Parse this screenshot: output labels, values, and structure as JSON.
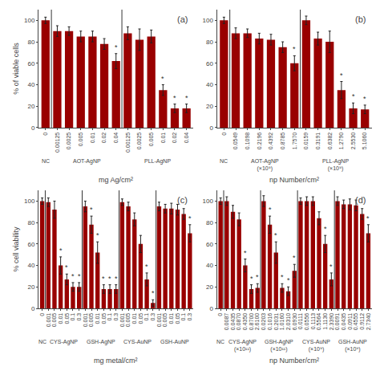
{
  "chart_data": [
    {
      "type": "bar",
      "title": "(a)",
      "xlabel": "mg Ag/cm²",
      "ylabel": "% of viable cells",
      "ylim": [
        0,
        110
      ],
      "yticks": [
        0,
        20,
        40,
        60,
        80,
        100
      ],
      "grid": false,
      "color": "#990000",
      "groups": [
        {
          "name": "NC",
          "categories": [
            "0"
          ],
          "values": [
            100
          ],
          "errors": [
            3
          ],
          "stars": [
            null
          ]
        },
        {
          "name": "AOT-AgNP",
          "categories": [
            "0.00125",
            "0.0025",
            "0.005",
            "0.01",
            "0.02",
            "0.04"
          ],
          "values": [
            90,
            90,
            85,
            85,
            78,
            62
          ],
          "errors": [
            5,
            4,
            5,
            5,
            5,
            7
          ],
          "stars": [
            null,
            null,
            null,
            null,
            null,
            "*"
          ]
        },
        {
          "name": "PLL-AgNP",
          "categories": [
            "0.00125",
            "0.0025",
            "0.005",
            "0.01",
            "0.02",
            "0.04"
          ],
          "values": [
            88,
            82,
            85,
            35,
            18,
            18
          ],
          "errors": [
            6,
            10,
            6,
            5,
            4,
            4
          ],
          "stars": [
            null,
            null,
            null,
            "*",
            "*",
            "*"
          ]
        }
      ]
    },
    {
      "type": "bar",
      "title": "(b)",
      "xlabel": "np Number/cm²",
      "ylim": [
        0,
        110
      ],
      "yticks": [
        0,
        20,
        40,
        60,
        80,
        100
      ],
      "grid": false,
      "color": "#990000",
      "groups": [
        {
          "name": "NC",
          "categories": [
            "0"
          ],
          "values": [
            100
          ],
          "errors": [
            3
          ],
          "stars": [
            null
          ]
        },
        {
          "name": "AOT-AgNP (×10⁹)",
          "categories": [
            "0.0549",
            "0.1098",
            "0.2196",
            "0.4392",
            "0.8785",
            "1.7570"
          ],
          "values": [
            88,
            88,
            83,
            82,
            75,
            60
          ],
          "errors": [
            5,
            4,
            5,
            5,
            5,
            7
          ],
          "stars": [
            null,
            null,
            null,
            null,
            null,
            "*"
          ]
        },
        {
          "name": "PLL-AgNP (×10⁹)",
          "categories": [
            "0.0159",
            "0.3191",
            "0.6382",
            "1.2790",
            "2.5530",
            "5.1060"
          ],
          "values": [
            100,
            83,
            80,
            35,
            18,
            17
          ],
          "errors": [
            4,
            6,
            10,
            8,
            5,
            4
          ],
          "stars": [
            null,
            null,
            null,
            "*",
            "*",
            "*"
          ]
        }
      ]
    },
    {
      "type": "bar",
      "title": "(c)",
      "xlabel": "mg metal/cm²",
      "ylabel": "% cell viability",
      "ylim": [
        0,
        110
      ],
      "yticks": [
        0,
        20,
        40,
        60,
        80,
        100
      ],
      "grid": false,
      "color": "#990000",
      "groups": [
        {
          "name": "NC",
          "categories": [
            "0"
          ],
          "values": [
            100
          ],
          "errors": [
            3
          ],
          "stars": [
            null
          ]
        },
        {
          "name": "CYS-AgNP",
          "categories": [
            "0.001",
            "0.005",
            "0.01",
            "0.05",
            "0.1",
            "0.3"
          ],
          "values": [
            99,
            92,
            40,
            27,
            20,
            20
          ],
          "errors": [
            4,
            8,
            8,
            5,
            4,
            4
          ],
          "stars": [
            null,
            null,
            "*",
            "*",
            "*",
            "*"
          ]
        },
        {
          "name": "GSH-AgNP",
          "categories": [
            "0.001",
            "0.005",
            "0.01",
            "0.05",
            "0.1",
            "0.3"
          ],
          "values": [
            95,
            78,
            52,
            18,
            18,
            18
          ],
          "errors": [
            5,
            8,
            10,
            4,
            4,
            4
          ],
          "stars": [
            null,
            "*",
            "*",
            "*",
            "*",
            "*"
          ]
        },
        {
          "name": "CYS-AuNP",
          "categories": [
            "0.001",
            "0.005",
            "0.01",
            "0.05",
            "0.1",
            "0.3"
          ],
          "values": [
            99,
            95,
            83,
            60,
            27,
            5
          ],
          "errors": [
            3,
            4,
            6,
            8,
            6,
            3
          ],
          "stars": [
            null,
            null,
            null,
            null,
            "*",
            "*"
          ]
        },
        {
          "name": "GSH-AuNP",
          "categories": [
            "0.001",
            "0.005",
            "0.01",
            "0.05",
            "0.1",
            "0.3"
          ],
          "values": [
            95,
            93,
            93,
            92,
            88,
            70
          ],
          "errors": [
            4,
            4,
            5,
            5,
            5,
            8
          ],
          "stars": [
            null,
            null,
            null,
            null,
            null,
            "*"
          ]
        }
      ]
    },
    {
      "type": "bar",
      "title": "(d)",
      "xlabel": "np Number/cm²",
      "ylim": [
        0,
        110
      ],
      "yticks": [
        0,
        20,
        40,
        60,
        80,
        100
      ],
      "grid": false,
      "color": "#990000",
      "groups": [
        {
          "name": "NC",
          "categories": [
            "0"
          ],
          "values": [
            100
          ],
          "errors": [
            3
          ],
          "stars": [
            null
          ]
        },
        {
          "name": "CYS-AgNP (×10¹¹)",
          "categories": [
            "0.0087",
            "0.0435",
            "0.0870",
            "0.4350",
            "0.8700",
            "2.6100"
          ],
          "values": [
            100,
            90,
            83,
            40,
            18,
            19
          ],
          "errors": [
            4,
            6,
            6,
            6,
            4,
            4
          ],
          "stars": [
            null,
            null,
            null,
            "*",
            "*",
            "*"
          ]
        },
        {
          "name": "GSH-AgNP (×10¹¹)",
          "categories": [
            "0.0203",
            "0.1016",
            "0.2031",
            "1.0160",
            "2.0310",
            "6.0930"
          ],
          "values": [
            100,
            78,
            52,
            19,
            16,
            35
          ],
          "errors": [
            5,
            8,
            10,
            4,
            4,
            6
          ],
          "stars": [
            null,
            "*",
            "*",
            "*",
            "*",
            "*"
          ]
        },
        {
          "name": "CYS-AuNP (×10⁹)",
          "categories": [
            "0.0111",
            "0.0556",
            "0.1113",
            "0.5564",
            "1.1130",
            "2.3390"
          ],
          "values": [
            100,
            100,
            100,
            84,
            60,
            27
          ],
          "errors": [
            3,
            4,
            4,
            6,
            8,
            6
          ],
          "stars": [
            null,
            null,
            null,
            null,
            "*",
            "*"
          ]
        },
        {
          "name": "GSH-AuNP (×10⁹)",
          "categories": [
            "0.0091",
            "0.0435",
            "0.0911",
            "0.4555",
            "0.9112",
            "2.7340"
          ],
          "values": [
            100,
            97,
            97,
            96,
            88,
            70
          ],
          "errors": [
            4,
            4,
            5,
            5,
            5,
            8
          ],
          "stars": [
            null,
            null,
            null,
            null,
            null,
            "*"
          ]
        }
      ]
    }
  ]
}
